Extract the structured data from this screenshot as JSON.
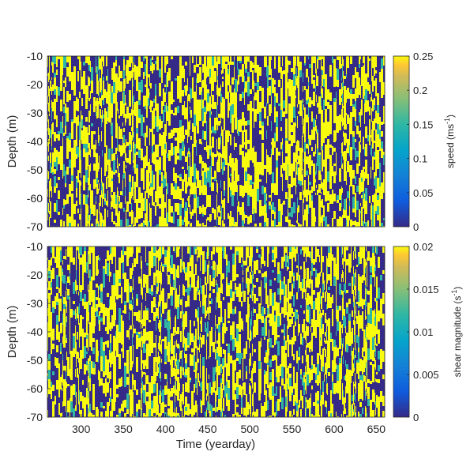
{
  "chart_data": [
    {
      "type": "heatmap",
      "xlim": [
        260,
        660
      ],
      "ylim": [
        -70,
        -10
      ],
      "xlabel": "",
      "ylabel": "Depth (m)",
      "yticks": [
        -10,
        -20,
        -30,
        -40,
        -50,
        -60,
        -70
      ],
      "xticks": [],
      "colorbar": {
        "label_main": "speed (ms",
        "label_sup": "-1",
        "label_end": ")",
        "range": [
          0,
          0.25
        ],
        "ticks": [
          "0.25",
          "0.2",
          "0.15",
          "0.1",
          "0.05",
          "0"
        ]
      },
      "colormap": "parula",
      "colors": {
        "low": "#352a87",
        "mid": "#2eb7a4",
        "high": "#f9fb0e"
      }
    },
    {
      "type": "heatmap",
      "xlim": [
        260,
        660
      ],
      "ylim": [
        -70,
        -10
      ],
      "xlabel": "Time (yearday)",
      "ylabel": "Depth (m)",
      "yticks": [
        -10,
        -20,
        -30,
        -40,
        -50,
        -60,
        -70
      ],
      "xticks": [
        300,
        350,
        400,
        450,
        500,
        550,
        600,
        650
      ],
      "colorbar": {
        "label_main": "shear magnitude (s",
        "label_sup": "-1",
        "label_end": ")",
        "range": [
          0,
          0.02
        ],
        "ticks": [
          "0.02",
          "0.015",
          "0.01",
          "0.005",
          "0"
        ]
      },
      "colormap": "parula",
      "colors": {
        "low": "#352a87",
        "mid": "#2eb7a4",
        "high": "#f9fb0e"
      }
    }
  ]
}
